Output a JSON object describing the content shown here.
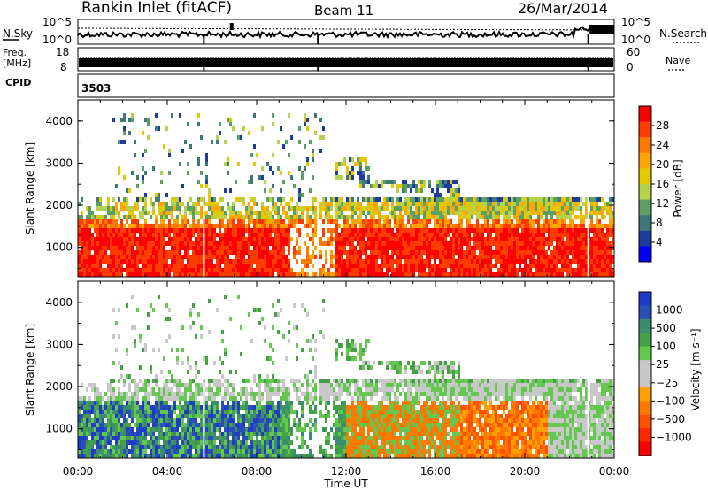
{
  "header": {
    "station": "Rankin Inlet (fitACF)",
    "beam": "Beam 11",
    "date": "26/Mar/2014"
  },
  "strips": {
    "nsky_label": "N.Sky",
    "nsky_ticks": [
      "10^5",
      "10^0"
    ],
    "nsearch_label": "N.Search",
    "nsearch_ticks": [
      "10^5",
      "10^0"
    ],
    "freq_label_1": "Freq.",
    "freq_label_2": "[MHz]",
    "freq_ticks": [
      "18",
      "8"
    ],
    "nave_label": "Nave",
    "nave_ticks": [
      "60",
      "0"
    ],
    "cpid_label": "CPID",
    "cpid_value": "3503"
  },
  "chart_data": [
    {
      "type": "heatmap",
      "name": "power-panel",
      "ylabel": "Slant Range [km]",
      "yticks": [
        1000,
        2000,
        3000,
        4000
      ],
      "ylim": [
        300,
        4500
      ],
      "xlim": [
        0,
        24
      ],
      "colorbar": {
        "label": "Power [dB]",
        "ticks": [
          "28",
          "24",
          "20",
          "16",
          "12",
          "8",
          "4"
        ],
        "colors": [
          "#ff0000",
          "#ff3c00",
          "#ff7800",
          "#ffa500",
          "#e6c800",
          "#b4d24b",
          "#5aa064",
          "#3c7878",
          "#1e3ca0",
          "#0000ff"
        ]
      }
    },
    {
      "type": "heatmap",
      "name": "velocity-panel",
      "ylabel": "Slant Range [km]",
      "yticks": [
        1000,
        2000,
        3000,
        4000
      ],
      "ylim": [
        300,
        4500
      ],
      "xlim": [
        0,
        24
      ],
      "xticks": [
        "00:00",
        "04:00",
        "08:00",
        "12:00",
        "16:00",
        "20:00",
        "00:00"
      ],
      "xlabel": "Time UT",
      "colorbar": {
        "label": "Velocity [m s⁻¹]",
        "ticks": [
          "1000",
          "500",
          "100",
          "25",
          "−25",
          "−100",
          "−500",
          "−1000"
        ],
        "colors": [
          "#1e3cc8",
          "#2850b4",
          "#3c8c6e",
          "#46a046",
          "#64c850",
          "#c8c8c8",
          "#c8c8c8",
          "#ffa000",
          "#ff7800",
          "#ff5000",
          "#ff2800",
          "#ff0000"
        ]
      }
    }
  ]
}
